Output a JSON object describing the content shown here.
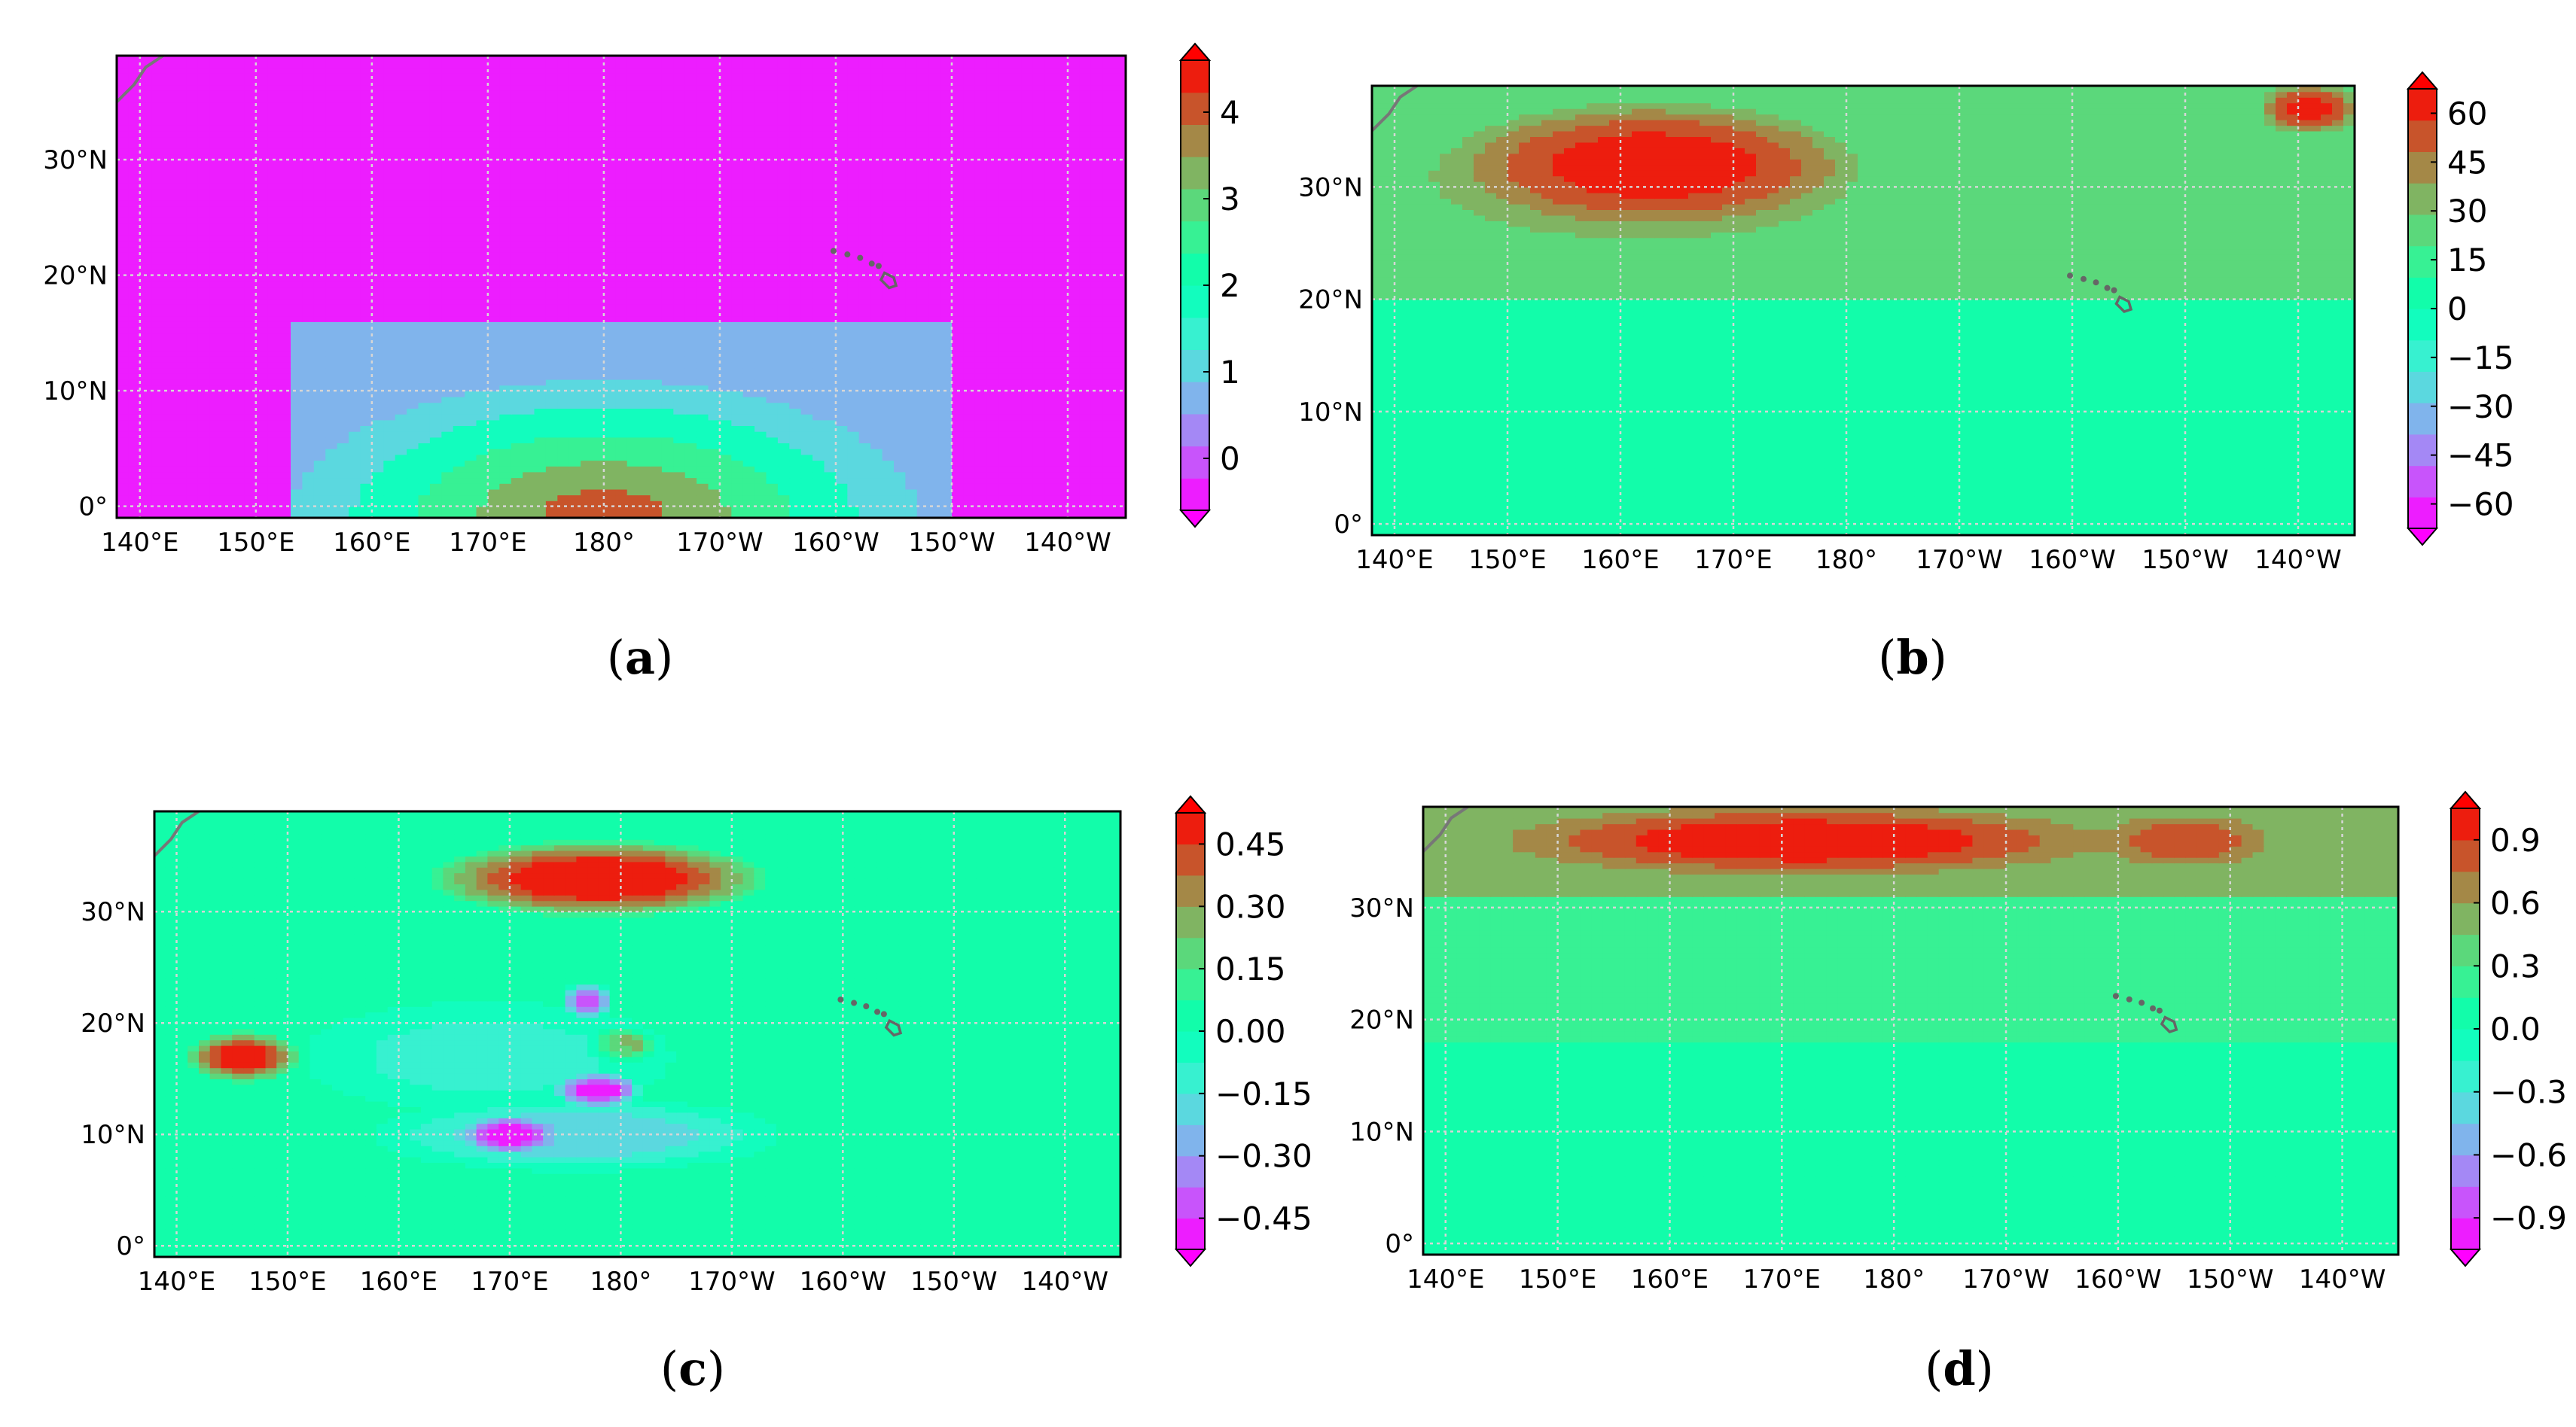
{
  "chart_data": [
    {
      "id": "a",
      "type": "heatmap",
      "label": "a",
      "xlabel": "",
      "ylabel": "",
      "x_ticks": [
        "140°E",
        "150°E",
        "160°E",
        "170°E",
        "180°",
        "170°W",
        "160°W",
        "150°W",
        "140°W"
      ],
      "y_ticks": [
        "0°",
        "10°N",
        "20°N",
        "30°N"
      ],
      "xlim": [
        138,
        225
      ],
      "ylim": [
        -1,
        39
      ],
      "colorbar": {
        "ticks": [
          "0",
          "1",
          "2",
          "3",
          "4"
        ],
        "range": [
          -0.6,
          4.6
        ],
        "extend": "both"
      },
      "grid": true,
      "field": {
        "background": -0.5,
        "features": [
          {
            "kind": "box",
            "lon": [
              153,
              210
            ],
            "lat": [
              -1,
              16
            ],
            "value": 0.8
          },
          {
            "kind": "dome",
            "lon_center": 180,
            "lat_base": -1,
            "half_width": 27,
            "height": 12,
            "levels": [
              1.2,
              1.9,
              2.6,
              3.3,
              4.0
            ]
          }
        ]
      }
    },
    {
      "id": "b",
      "type": "heatmap",
      "label": "b",
      "xlabel": "",
      "ylabel": "",
      "x_ticks": [
        "140°E",
        "150°E",
        "160°E",
        "170°E",
        "180°",
        "170°W",
        "160°W",
        "150°W",
        "140°W"
      ],
      "y_ticks": [
        "0°",
        "10°N",
        "20°N",
        "30°N"
      ],
      "xlim": [
        138,
        225
      ],
      "ylim": [
        -1,
        39
      ],
      "colorbar": {
        "ticks": [
          "60",
          "45",
          "30",
          "15",
          "0",
          "−15",
          "−30",
          "−45",
          "−60"
        ],
        "range": [
          -67.5,
          67.5
        ],
        "extend": "both"
      },
      "grid": true,
      "field": {
        "background": 5,
        "features": [
          {
            "kind": "band",
            "lat": [
              20,
              39
            ],
            "value": 22
          },
          {
            "kind": "blob",
            "lon": 162,
            "lat": 31,
            "rlon": 30,
            "rlat": 9,
            "value": 38
          },
          {
            "kind": "blob",
            "lon": 163,
            "lat": 32,
            "rlon": 22,
            "rlat": 7,
            "value": 62
          },
          {
            "kind": "blob",
            "lon": 221,
            "lat": 37,
            "rlon": 6,
            "rlat": 3,
            "value": 60
          },
          {
            "kind": "band",
            "lat": [
              -1,
              5
            ],
            "value": 3
          }
        ]
      }
    },
    {
      "id": "c",
      "type": "heatmap",
      "label": "c",
      "xlabel": "",
      "ylabel": "",
      "x_ticks": [
        "140°E",
        "150°E",
        "160°E",
        "170°E",
        "180°",
        "170°W",
        "160°W",
        "150°W",
        "140°W"
      ],
      "y_ticks": [
        "0°",
        "10°N",
        "20°N",
        "30°N"
      ],
      "xlim": [
        138,
        225
      ],
      "ylim": [
        -1,
        39
      ],
      "colorbar": {
        "ticks": [
          "0.45",
          "0.30",
          "0.15",
          "0.00",
          "−0.15",
          "−0.30",
          "−0.45"
        ],
        "range": [
          -0.525,
          0.525
        ],
        "extend": "both"
      },
      "grid": true,
      "field": {
        "background": 0.0,
        "features": [
          {
            "kind": "blob",
            "lon": 178,
            "lat": 33,
            "rlon": 22,
            "rlat": 5,
            "value": 0.25
          },
          {
            "kind": "blob",
            "lon": 178,
            "lat": 33,
            "rlon": 18,
            "rlat": 4,
            "value": 0.52
          },
          {
            "kind": "blob",
            "lon": 146,
            "lat": 17,
            "rlon": 7,
            "rlat": 3,
            "value": 0.5
          },
          {
            "kind": "blob",
            "lon": 180,
            "lat": 18,
            "rlon": 4,
            "rlat": 2,
            "value": 0.45
          },
          {
            "kind": "blob",
            "lon": 168,
            "lat": 17,
            "rlon": 20,
            "rlat": 6,
            "value": -0.12
          },
          {
            "kind": "blob",
            "lon": 176,
            "lat": 10,
            "rlon": 22,
            "rlat": 4,
            "value": -0.22
          },
          {
            "kind": "blob",
            "lon": 170,
            "lat": 10,
            "rlon": 5,
            "rlat": 2,
            "value": -0.5
          },
          {
            "kind": "blob",
            "lon": 178,
            "lat": 14,
            "rlon": 5,
            "rlat": 2,
            "value": -0.5
          },
          {
            "kind": "blob",
            "lon": 177,
            "lat": 22,
            "rlon": 3,
            "rlat": 2,
            "value": -0.4
          },
          {
            "kind": "band",
            "lat": [
              -1,
              3
            ],
            "value": 0.02
          }
        ]
      }
    },
    {
      "id": "d",
      "type": "heatmap",
      "label": "d",
      "xlabel": "",
      "ylabel": "",
      "x_ticks": [
        "140°E",
        "150°E",
        "160°E",
        "170°E",
        "180°",
        "170°W",
        "160°W",
        "150°W",
        "140°W"
      ],
      "y_ticks": [
        "0°",
        "10°N",
        "20°N",
        "30°N"
      ],
      "xlim": [
        138,
        225
      ],
      "ylim": [
        -1,
        39
      ],
      "colorbar": {
        "ticks": [
          "0.9",
          "0.6",
          "0.3",
          "0.0",
          "−0.3",
          "−0.6",
          "−0.9"
        ],
        "range": [
          -1.05,
          1.05
        ],
        "extend": "both"
      },
      "grid": true,
      "field": {
        "background": 0.0,
        "features": [
          {
            "kind": "band",
            "lat": [
              18,
              31
            ],
            "value": 0.22
          },
          {
            "kind": "band",
            "lat": [
              31,
              39
            ],
            "value": 0.55
          },
          {
            "kind": "blob",
            "lon": 172,
            "lat": 36,
            "rlon": 34,
            "rlat": 4,
            "value": 1.0
          },
          {
            "kind": "blob",
            "lon": 206,
            "lat": 36,
            "rlon": 10,
            "rlat": 3,
            "value": 0.85
          }
        ]
      }
    }
  ]
}
